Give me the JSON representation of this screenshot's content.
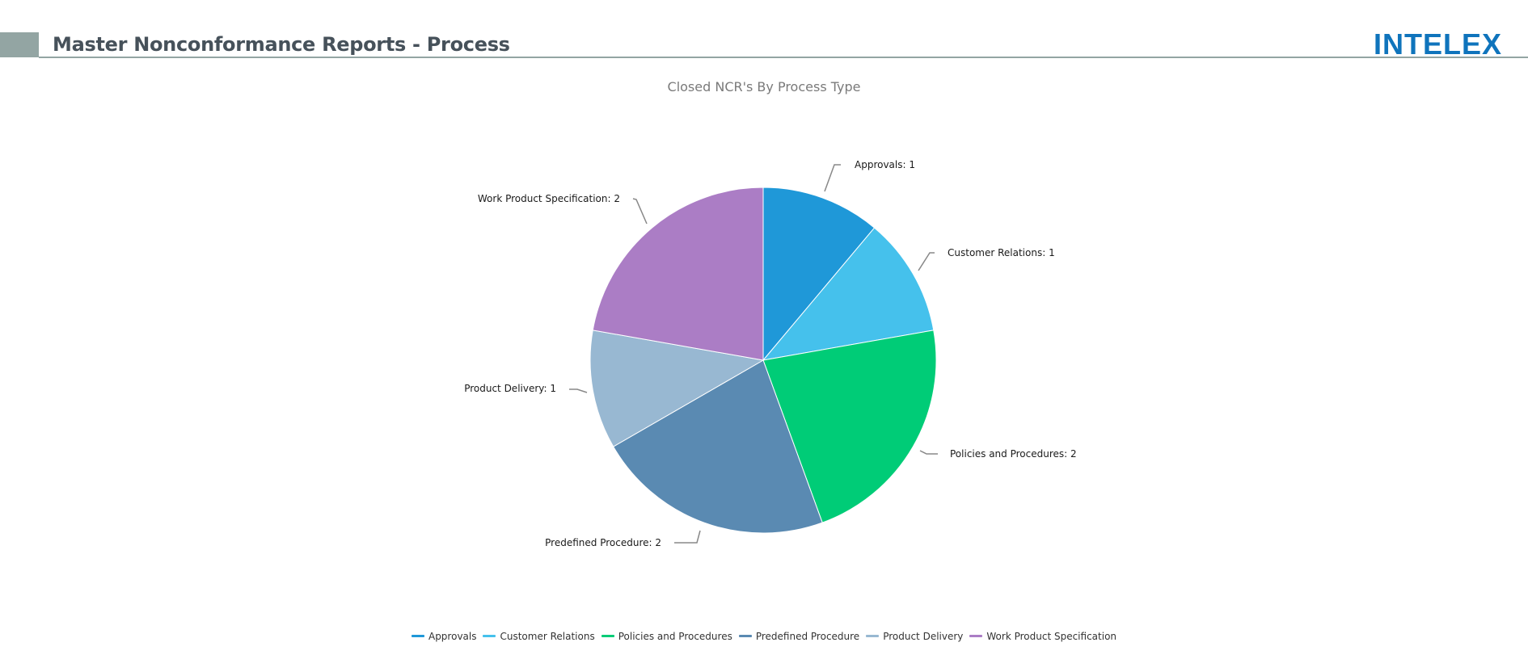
{
  "header": {
    "title": "Master Nonconformance Reports - Process",
    "logo_text": "INTELEX",
    "accent_color": "#93a5a3",
    "logo_color": "#0f74bc"
  },
  "chart": {
    "title": "Closed NCR's By Process Type"
  },
  "legend": {
    "items": [
      {
        "label": "Approvals",
        "color": "#1f98d8"
      },
      {
        "label": "Customer Relations",
        "color": "#45c1ec"
      },
      {
        "label": "Policies and Procedures",
        "color": "#00cc77"
      },
      {
        "label": "Predefined Procedure",
        "color": "#5a8ab2"
      },
      {
        "label": "Product Delivery",
        "color": "#98b8d2"
      },
      {
        "label": "Work Product Specification",
        "color": "#ab7dc5"
      }
    ]
  },
  "data_labels": {
    "approvals": "Approvals: 1",
    "customer_relations": "Customer Relations: 1",
    "policies": "Policies and Procedures: 2",
    "predefined": "Predefined Procedure: 2",
    "product_delivery": "Product Delivery: 1",
    "work_product": "Work Product Specification: 2"
  },
  "chart_data": {
    "type": "pie",
    "title": "Closed NCR's By Process Type",
    "categories": [
      "Approvals",
      "Customer Relations",
      "Policies and Procedures",
      "Predefined Procedure",
      "Product Delivery",
      "Work Product Specification"
    ],
    "values": [
      1,
      1,
      2,
      2,
      1,
      2
    ],
    "colors": [
      "#1f98d8",
      "#45c1ec",
      "#00cc77",
      "#5a8ab2",
      "#98b8d2",
      "#ab7dc5"
    ],
    "total": 9,
    "start_angle": "top, clockwise",
    "data_labels": true,
    "legend_position": "bottom"
  }
}
